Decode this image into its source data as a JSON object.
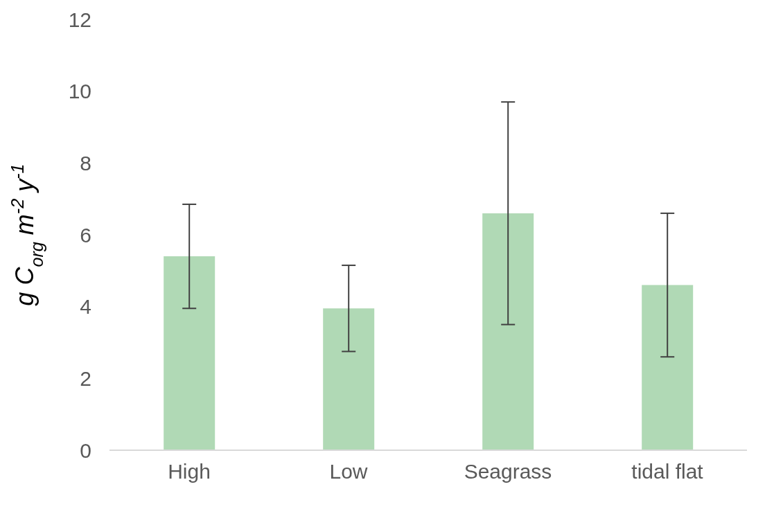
{
  "chart_data": {
    "type": "bar",
    "ylabel": "g C$_{org}$ m$^{-2}$ y$^{-1}$",
    "categories": [
      "High",
      "Low",
      "Seagrass",
      "tidal flat"
    ],
    "values": [
      5.4,
      3.95,
      6.6,
      4.6
    ],
    "errors": [
      1.45,
      1.2,
      3.1,
      2.0
    ],
    "color": "#b0d9b5",
    "ylim": [
      0,
      12
    ],
    "yticks": [
      0,
      2,
      4,
      6,
      8,
      10,
      12
    ],
    "grid": false
  }
}
